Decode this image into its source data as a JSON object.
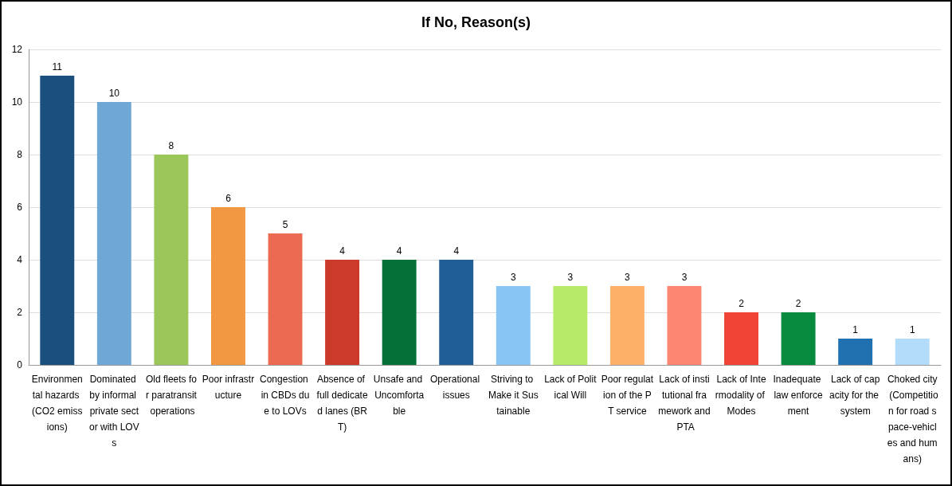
{
  "chart_data": {
    "type": "bar",
    "title": "If No, Reason(s)",
    "categories": [
      "Environmental hazards (CO2 emissions)",
      "Dominated by informal private sector with LOVs",
      "Old fleets for paratransit operations",
      "Poor infrastructure",
      "Congestion in CBDs due to LOVs",
      "Absence of full dedicated lanes (BRT)",
      "Unsafe and Uncomfortable",
      "Operational issues",
      "Striving to Make it Sustainable",
      "Lack of Political Will",
      "Poor regulation of the PT service",
      "Lack of institutional framework and PTA",
      "Lack of Intermodality of Modes",
      "Inadequate law enforcement",
      "Lack of capacity for the system",
      "Choked city (Competition for road space-vehicles and humans)"
    ],
    "values": [
      11,
      10,
      8,
      6,
      5,
      4,
      4,
      4,
      3,
      3,
      3,
      3,
      2,
      2,
      1,
      1
    ],
    "colors": [
      "#1b4f7e",
      "#6fa8d6",
      "#9bc65a",
      "#f39842",
      "#ec6a52",
      "#cc3a2b",
      "#05713a",
      "#1f5f96",
      "#87c5f7",
      "#b8ea6a",
      "#fdb068",
      "#fd8673",
      "#f14437",
      "#07893e",
      "#2170b0",
      "#b3dcfb"
    ],
    "ylim": [
      0,
      12
    ],
    "yticks": [
      0,
      2,
      4,
      6,
      8,
      10,
      12
    ],
    "grid": "y",
    "data_labels": true
  }
}
